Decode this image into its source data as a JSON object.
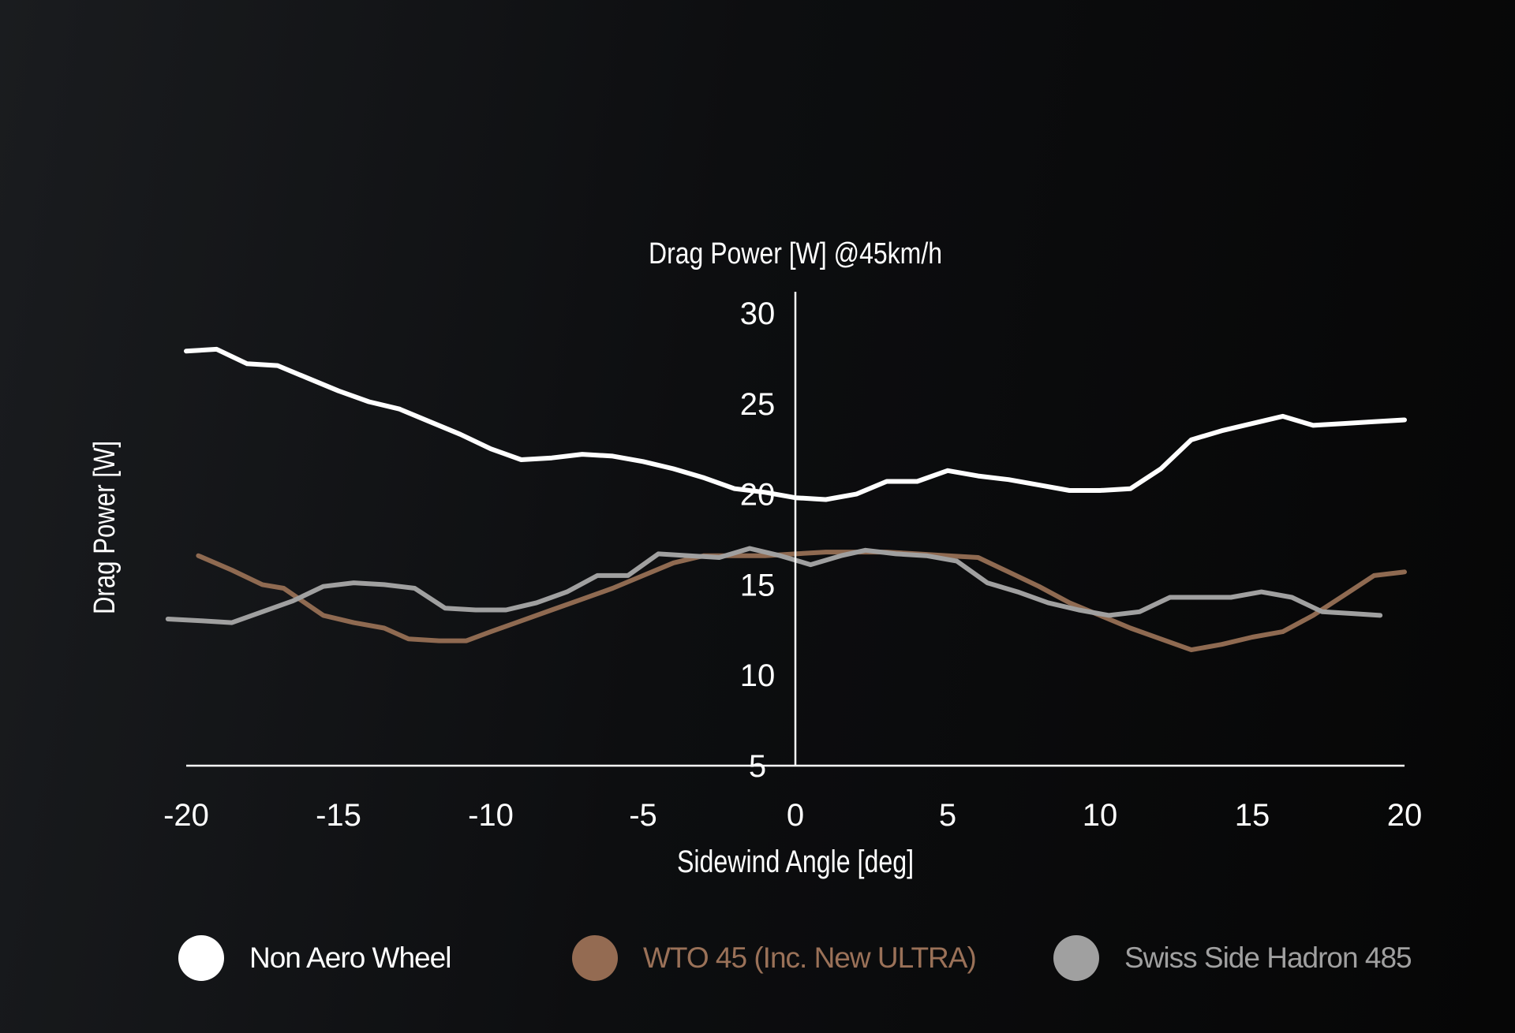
{
  "colors": {
    "background": "#0d0e10",
    "axis": "#ffffff",
    "text": "#ffffff",
    "series_colors": [
      "#ffffff",
      "#8f6a51",
      "#a0a0a0"
    ],
    "legend_text_colors": [
      "#ffffff",
      "#9a7158",
      "#a0a0a0"
    ]
  },
  "chart_data": {
    "type": "line",
    "title": "Drag Power [W] @45km/h",
    "xlabel": "Sidewind Angle [deg]",
    "ylabel": "Drag Power [W]",
    "xlim": [
      -20,
      20
    ],
    "ylim": [
      5,
      30
    ],
    "x_ticks": [
      "-20",
      "-15",
      "-10",
      "-5",
      "0",
      "5",
      "10",
      "15",
      "20"
    ],
    "y_ticks": [
      "30",
      "25",
      "20",
      "15",
      "10",
      "5"
    ],
    "grid": false,
    "legend_position": "bottom",
    "series": [
      {
        "name": "Non Aero Wheel",
        "points": [
          [
            -20,
            27.9
          ],
          [
            -19,
            28.0
          ],
          [
            -18,
            27.2
          ],
          [
            -17,
            27.1
          ],
          [
            -16,
            26.4
          ],
          [
            -15,
            25.7
          ],
          [
            -14,
            25.1
          ],
          [
            -13,
            24.7
          ],
          [
            -12,
            24.0
          ],
          [
            -11,
            23.3
          ],
          [
            -10,
            22.5
          ],
          [
            -9,
            21.9
          ],
          [
            -8,
            22.0
          ],
          [
            -7,
            22.2
          ],
          [
            -6,
            22.1
          ],
          [
            -5,
            21.8
          ],
          [
            -4,
            21.4
          ],
          [
            -3,
            20.9
          ],
          [
            -2,
            20.3
          ],
          [
            -1,
            20.1
          ],
          [
            0,
            19.8
          ],
          [
            1,
            19.7
          ],
          [
            2,
            20.0
          ],
          [
            3,
            20.7
          ],
          [
            4,
            20.7
          ],
          [
            5,
            21.3
          ],
          [
            6,
            21.0
          ],
          [
            7,
            20.8
          ],
          [
            8,
            20.5
          ],
          [
            9,
            20.2
          ],
          [
            10,
            20.2
          ],
          [
            11,
            20.3
          ],
          [
            12,
            21.4
          ],
          [
            13,
            23.0
          ],
          [
            14,
            23.5
          ],
          [
            15,
            23.9
          ],
          [
            16,
            24.3
          ],
          [
            17,
            23.8
          ],
          [
            18,
            23.9
          ],
          [
            19,
            24.0
          ],
          [
            20,
            24.1
          ]
        ]
      },
      {
        "name": "WTO 45 (Inc. New ULTRA)",
        "points": [
          [
            -19.6,
            16.6
          ],
          [
            -18.5,
            15.8
          ],
          [
            -17.5,
            15.0
          ],
          [
            -16.8,
            14.8
          ],
          [
            -15.5,
            13.3
          ],
          [
            -14.5,
            12.9
          ],
          [
            -13.5,
            12.6
          ],
          [
            -12.7,
            12.0
          ],
          [
            -11.7,
            11.9
          ],
          [
            -10.8,
            11.9
          ],
          [
            -10,
            12.4
          ],
          [
            -9,
            13.0
          ],
          [
            -8,
            13.6
          ],
          [
            -7,
            14.2
          ],
          [
            -6,
            14.8
          ],
          [
            -5,
            15.5
          ],
          [
            -4,
            16.2
          ],
          [
            -3,
            16.6
          ],
          [
            -2,
            16.6
          ],
          [
            -1,
            16.6
          ],
          [
            0,
            16.7
          ],
          [
            1,
            16.8
          ],
          [
            2,
            16.8
          ],
          [
            3,
            16.8
          ],
          [
            4,
            16.7
          ],
          [
            5,
            16.6
          ],
          [
            6,
            16.5
          ],
          [
            7,
            15.7
          ],
          [
            8,
            14.9
          ],
          [
            9,
            14.0
          ],
          [
            10,
            13.3
          ],
          [
            11,
            12.6
          ],
          [
            12,
            12.0
          ],
          [
            13,
            11.4
          ],
          [
            14,
            11.7
          ],
          [
            15,
            12.1
          ],
          [
            16,
            12.4
          ],
          [
            17,
            13.3
          ],
          [
            18,
            14.4
          ],
          [
            19,
            15.5
          ],
          [
            20,
            15.7
          ]
        ]
      },
      {
        "name": "Swiss Side Hadron 485",
        "points": [
          [
            -20.6,
            13.1
          ],
          [
            -19.5,
            13.0
          ],
          [
            -18.5,
            12.9
          ],
          [
            -17.5,
            13.5
          ],
          [
            -16.5,
            14.1
          ],
          [
            -15.5,
            14.9
          ],
          [
            -14.5,
            15.1
          ],
          [
            -13.5,
            15.0
          ],
          [
            -12.5,
            14.8
          ],
          [
            -11.5,
            13.7
          ],
          [
            -10.5,
            13.6
          ],
          [
            -9.5,
            13.6
          ],
          [
            -8.5,
            14.0
          ],
          [
            -7.5,
            14.6
          ],
          [
            -6.5,
            15.5
          ],
          [
            -5.5,
            15.5
          ],
          [
            -4.5,
            16.7
          ],
          [
            -3.5,
            16.6
          ],
          [
            -2.5,
            16.5
          ],
          [
            -1.5,
            17.0
          ],
          [
            -0.5,
            16.6
          ],
          [
            0.5,
            16.1
          ],
          [
            1.5,
            16.6
          ],
          [
            2.3,
            16.9
          ],
          [
            3.3,
            16.7
          ],
          [
            4.3,
            16.6
          ],
          [
            5.3,
            16.3
          ],
          [
            6.3,
            15.1
          ],
          [
            7.3,
            14.6
          ],
          [
            8.3,
            14.0
          ],
          [
            9.3,
            13.6
          ],
          [
            10.3,
            13.3
          ],
          [
            11.3,
            13.5
          ],
          [
            12.3,
            14.3
          ],
          [
            13.3,
            14.3
          ],
          [
            14.3,
            14.3
          ],
          [
            15.3,
            14.6
          ],
          [
            16.3,
            14.3
          ],
          [
            17.3,
            13.5
          ],
          [
            18.3,
            13.4
          ],
          [
            19.2,
            13.3
          ]
        ]
      }
    ]
  }
}
